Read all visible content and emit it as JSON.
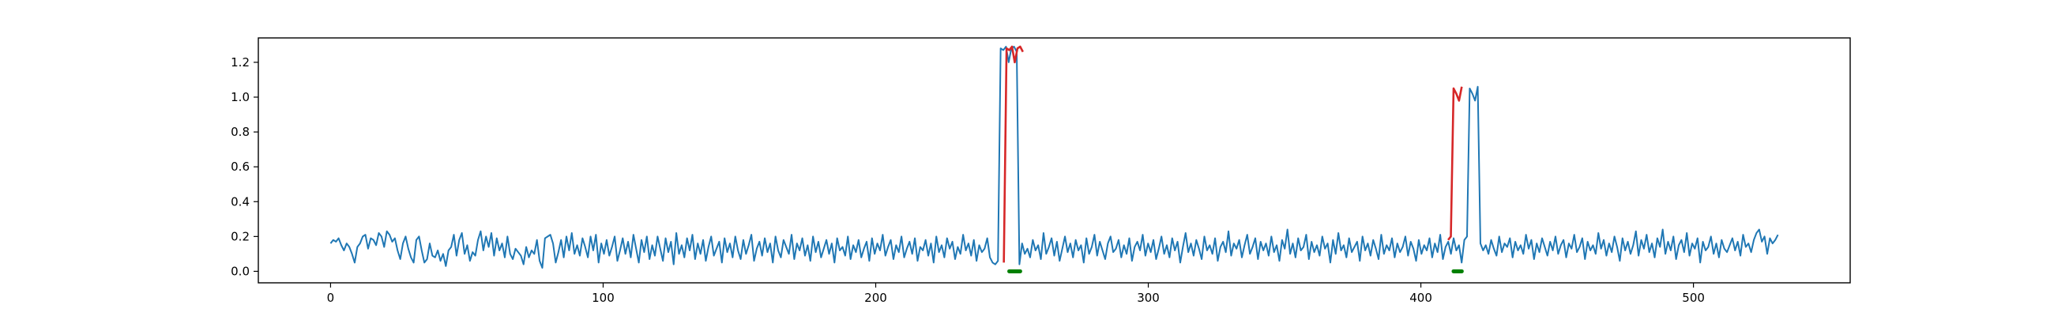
{
  "chart_data": {
    "type": "line",
    "title": "",
    "xlabel": "",
    "ylabel": "",
    "xlim": [
      -26.5,
      557.5
    ],
    "ylim": [
      -0.066,
      1.34
    ],
    "grid": false,
    "legend": "none",
    "x_ticks": [
      0,
      100,
      200,
      300,
      400,
      500
    ],
    "x_tick_labels": [
      "0",
      "100",
      "200",
      "300",
      "400",
      "500"
    ],
    "y_ticks": [
      0.0,
      0.2,
      0.4,
      0.6,
      0.8,
      1.0,
      1.2
    ],
    "y_tick_labels": [
      "0.0",
      "0.2",
      "0.4",
      "0.6",
      "0.8",
      "1.0",
      "1.2"
    ],
    "colors": {
      "normal": "#1f77b4",
      "anomaly": "#d62728",
      "marker": "#008000"
    },
    "series": [
      {
        "kind": "signal",
        "x_start": 0,
        "x_end": 531,
        "values": [
          0.16,
          0.18,
          0.17,
          0.19,
          0.15,
          0.12,
          0.16,
          0.14,
          0.1,
          0.05,
          0.14,
          0.16,
          0.2,
          0.21,
          0.13,
          0.19,
          0.18,
          0.15,
          0.22,
          0.2,
          0.14,
          0.23,
          0.21,
          0.17,
          0.19,
          0.12,
          0.07,
          0.16,
          0.2,
          0.13,
          0.08,
          0.05,
          0.18,
          0.2,
          0.12,
          0.05,
          0.07,
          0.16,
          0.09,
          0.08,
          0.12,
          0.06,
          0.1,
          0.03,
          0.12,
          0.14,
          0.21,
          0.09,
          0.18,
          0.22,
          0.1,
          0.15,
          0.06,
          0.11,
          0.09,
          0.18,
          0.23,
          0.12,
          0.2,
          0.14,
          0.22,
          0.09,
          0.19,
          0.12,
          0.16,
          0.08,
          0.2,
          0.1,
          0.07,
          0.13,
          0.11,
          0.09,
          0.04,
          0.14,
          0.08,
          0.12,
          0.1,
          0.18,
          0.06,
          0.02,
          0.19,
          0.2,
          0.21,
          0.16,
          0.05,
          0.11,
          0.18,
          0.08,
          0.2,
          0.12,
          0.22,
          0.1,
          0.15,
          0.09,
          0.19,
          0.14,
          0.08,
          0.2,
          0.12,
          0.21,
          0.05,
          0.16,
          0.1,
          0.18,
          0.09,
          0.14,
          0.2,
          0.06,
          0.12,
          0.19,
          0.1,
          0.17,
          0.08,
          0.21,
          0.13,
          0.05,
          0.18,
          0.11,
          0.2,
          0.07,
          0.15,
          0.09,
          0.2,
          0.13,
          0.06,
          0.19,
          0.11,
          0.17,
          0.04,
          0.22,
          0.1,
          0.15,
          0.08,
          0.19,
          0.12,
          0.21,
          0.07,
          0.16,
          0.1,
          0.18,
          0.06,
          0.14,
          0.2,
          0.09,
          0.13,
          0.17,
          0.05,
          0.19,
          0.11,
          0.16,
          0.08,
          0.2,
          0.12,
          0.07,
          0.18,
          0.1,
          0.15,
          0.21,
          0.06,
          0.13,
          0.17,
          0.09,
          0.19,
          0.11,
          0.16,
          0.05,
          0.2,
          0.12,
          0.08,
          0.18,
          0.14,
          0.1,
          0.21,
          0.07,
          0.16,
          0.12,
          0.19,
          0.09,
          0.15,
          0.06,
          0.2,
          0.11,
          0.17,
          0.08,
          0.13,
          0.18,
          0.1,
          0.16,
          0.05,
          0.19,
          0.12,
          0.14,
          0.09,
          0.2,
          0.07,
          0.15,
          0.11,
          0.18,
          0.08,
          0.13,
          0.17,
          0.06,
          0.19,
          0.1,
          0.16,
          0.12,
          0.21,
          0.09,
          0.14,
          0.18,
          0.07,
          0.15,
          0.11,
          0.2,
          0.08,
          0.13,
          0.17,
          0.1,
          0.19,
          0.06,
          0.14,
          0.12,
          0.18,
          0.09,
          0.16,
          0.05,
          0.2,
          0.11,
          0.15,
          0.08,
          0.19,
          0.13,
          0.17,
          0.07,
          0.14,
          0.1,
          0.21,
          0.12,
          0.16,
          0.09,
          0.18,
          0.06,
          0.15,
          0.11,
          0.13,
          0.19,
          0.08,
          0.05,
          0.04,
          0.06,
          1.28,
          1.27,
          1.29,
          1.2,
          1.28,
          1.29,
          1.26,
          0.04,
          0.16,
          0.1,
          0.13,
          0.08,
          0.18,
          0.12,
          0.15,
          0.07,
          0.22,
          0.1,
          0.14,
          0.19,
          0.09,
          0.17,
          0.06,
          0.13,
          0.2,
          0.11,
          0.16,
          0.08,
          0.18,
          0.12,
          0.15,
          0.05,
          0.19,
          0.1,
          0.14,
          0.21,
          0.09,
          0.17,
          0.12,
          0.07,
          0.16,
          0.2,
          0.11,
          0.13,
          0.18,
          0.08,
          0.15,
          0.1,
          0.19,
          0.06,
          0.14,
          0.17,
          0.12,
          0.21,
          0.09,
          0.16,
          0.11,
          0.18,
          0.07,
          0.13,
          0.2,
          0.1,
          0.15,
          0.08,
          0.19,
          0.12,
          0.17,
          0.05,
          0.14,
          0.22,
          0.11,
          0.16,
          0.09,
          0.18,
          0.13,
          0.07,
          0.2,
          0.12,
          0.15,
          0.1,
          0.19,
          0.06,
          0.14,
          0.17,
          0.11,
          0.23,
          0.09,
          0.16,
          0.13,
          0.18,
          0.08,
          0.15,
          0.21,
          0.1,
          0.14,
          0.19,
          0.07,
          0.17,
          0.12,
          0.16,
          0.09,
          0.2,
          0.11,
          0.15,
          0.06,
          0.18,
          0.13,
          0.24,
          0.1,
          0.16,
          0.08,
          0.19,
          0.12,
          0.14,
          0.21,
          0.07,
          0.17,
          0.11,
          0.15,
          0.09,
          0.2,
          0.13,
          0.16,
          0.05,
          0.18,
          0.1,
          0.22,
          0.12,
          0.15,
          0.08,
          0.19,
          0.11,
          0.14,
          0.17,
          0.06,
          0.2,
          0.12,
          0.16,
          0.09,
          0.18,
          0.13,
          0.07,
          0.21,
          0.1,
          0.15,
          0.12,
          0.19,
          0.08,
          0.16,
          0.11,
          0.14,
          0.2,
          0.09,
          0.17,
          0.13,
          0.06,
          0.18,
          0.1,
          0.15,
          0.12,
          0.19,
          0.08,
          0.16,
          0.11,
          0.21,
          0.07,
          0.14,
          0.17,
          0.1,
          0.19,
          0.12,
          0.15,
          0.05,
          0.18,
          0.2,
          1.05,
          1.02,
          0.98,
          1.06,
          0.16,
          0.12,
          0.15,
          0.1,
          0.18,
          0.13,
          0.09,
          0.2,
          0.11,
          0.16,
          0.14,
          0.19,
          0.08,
          0.17,
          0.12,
          0.15,
          0.1,
          0.21,
          0.13,
          0.18,
          0.07,
          0.16,
          0.11,
          0.19,
          0.14,
          0.09,
          0.17,
          0.12,
          0.2,
          0.1,
          0.15,
          0.18,
          0.08,
          0.16,
          0.13,
          0.21,
          0.11,
          0.14,
          0.19,
          0.07,
          0.17,
          0.12,
          0.15,
          0.1,
          0.22,
          0.13,
          0.18,
          0.09,
          0.16,
          0.11,
          0.2,
          0.14,
          0.06,
          0.19,
          0.12,
          0.17,
          0.1,
          0.15,
          0.23,
          0.09,
          0.18,
          0.13,
          0.21,
          0.11,
          0.16,
          0.08,
          0.19,
          0.14,
          0.24,
          0.1,
          0.17,
          0.12,
          0.2,
          0.07,
          0.15,
          0.18,
          0.11,
          0.22,
          0.09,
          0.16,
          0.13,
          0.19,
          0.05,
          0.17,
          0.12,
          0.14,
          0.2,
          0.1,
          0.16,
          0.08,
          0.18,
          0.13,
          0.11,
          0.15,
          0.19,
          0.12,
          0.17,
          0.09,
          0.21,
          0.14,
          0.16,
          0.11,
          0.18,
          0.22,
          0.24,
          0.17,
          0.2,
          0.1,
          0.19,
          0.16,
          0.18,
          0.21
        ]
      },
      {
        "kind": "anomaly",
        "x_start": 247,
        "x_end": 254,
        "values": [
          0.05,
          1.28,
          1.27,
          1.29,
          1.2,
          1.28,
          1.29,
          1.26
        ]
      },
      {
        "kind": "anomaly",
        "x_start": 410,
        "x_end": 415,
        "values": [
          0.18,
          0.2,
          1.05,
          1.02,
          0.98,
          1.06
        ]
      }
    ],
    "markers": [
      {
        "x_start": 249,
        "x_end": 253,
        "y": 0.0
      },
      {
        "x_start": 412,
        "x_end": 415,
        "y": 0.0
      }
    ]
  }
}
